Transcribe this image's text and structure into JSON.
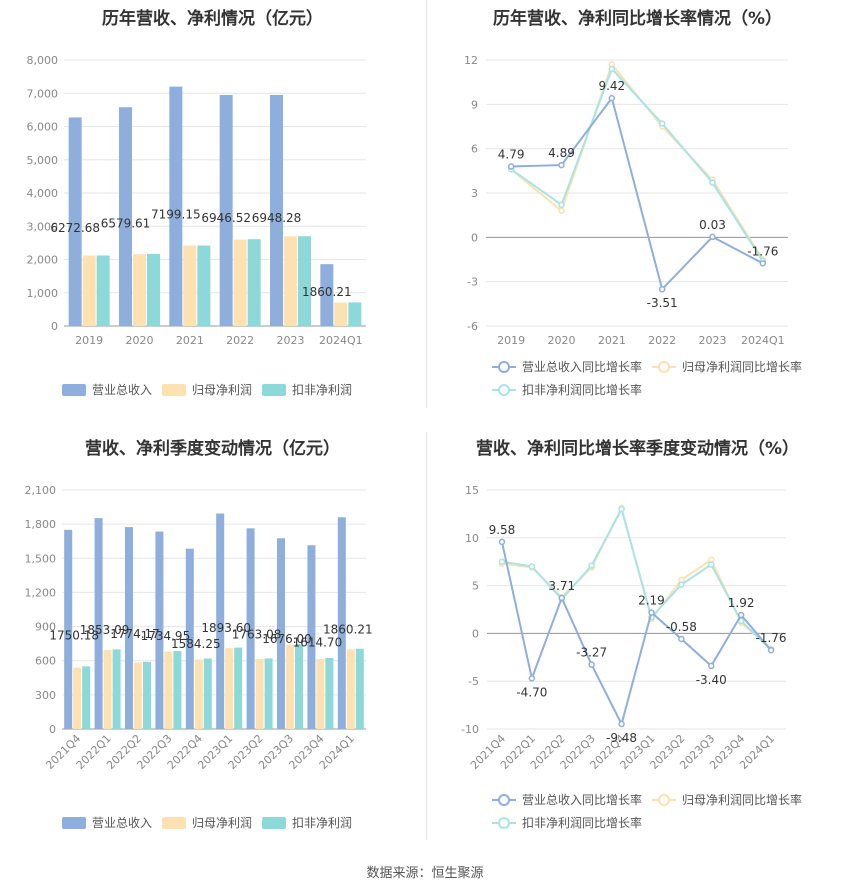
{
  "footer": {
    "source": "数据来源：恒生聚源"
  },
  "colors": {
    "revenue": "#8eafdc",
    "net_profit": "#fde1b0",
    "deducted_profit": "#8dd9d9",
    "rev_line": "#8eafdc",
    "np_line": "#fde1b0",
    "dp_line": "#a8e3e6"
  },
  "chart_data": [
    {
      "id": "annual-bars",
      "type": "bar",
      "title": "历年营收、净利情况（亿元）",
      "categories": [
        "2019",
        "2020",
        "2021",
        "2022",
        "2023",
        "2024Q1"
      ],
      "series": [
        {
          "name": "营业总收入",
          "values": [
            6272.68,
            6579.61,
            7199.15,
            6946.52,
            6948.28,
            1860.21
          ],
          "labels": [
            "6272.68",
            "6579.61",
            "7199.15",
            "6946.52",
            "6948.28",
            "1860.21"
          ]
        },
        {
          "name": "归母净利润",
          "values": [
            2120,
            2160,
            2420,
            2600,
            2700,
            700
          ]
        },
        {
          "name": "扣非净利润",
          "values": [
            2120,
            2170,
            2420,
            2610,
            2700,
            710
          ]
        }
      ],
      "yticks": [
        "0",
        "1,000",
        "2,000",
        "3,000",
        "4,000",
        "5,000",
        "6,000",
        "7,000",
        "8,000"
      ],
      "ylim": [
        0,
        8000
      ],
      "legend_position": "bottom"
    },
    {
      "id": "annual-growth",
      "type": "line",
      "title": "历年营收、净利同比增长率情况（%）",
      "categories": [
        "2019",
        "2020",
        "2021",
        "2022",
        "2023",
        "2024Q1"
      ],
      "series": [
        {
          "name": "营业总收入同比增长率",
          "values": [
            4.79,
            4.89,
            9.42,
            -3.51,
            0.03,
            -1.76
          ],
          "labels": [
            "4.79",
            "4.89",
            "9.42",
            "-3.51",
            "0.03",
            "-1.76"
          ]
        },
        {
          "name": "归母净利润同比增长率",
          "values": [
            4.6,
            1.8,
            11.7,
            7.5,
            3.9,
            -1.5
          ]
        },
        {
          "name": "扣非净利润同比增长率",
          "values": [
            4.6,
            2.2,
            11.4,
            7.7,
            3.7,
            -1.6
          ]
        }
      ],
      "yticks": [
        "-6",
        "-3",
        "0",
        "3",
        "6",
        "9",
        "12"
      ],
      "ylim": [
        -6,
        12
      ],
      "legend_position": "bottom"
    },
    {
      "id": "quarterly-bars",
      "type": "bar",
      "title": "营收、净利季度变动情况（亿元）",
      "categories": [
        "2021Q4",
        "2022Q1",
        "2022Q2",
        "2022Q3",
        "2022Q4",
        "2023Q1",
        "2023Q2",
        "2023Q3",
        "2023Q4",
        "2024Q1"
      ],
      "series": [
        {
          "name": "营业总收入",
          "values": [
            1750.18,
            1853.09,
            1774.17,
            1734.95,
            1584.25,
            1893.6,
            1763.08,
            1676.0,
            1614.7,
            1860.21
          ],
          "labels": [
            "1750.18",
            "1853.09",
            "1774.17",
            "1734.95",
            "1584.25",
            "1893.60",
            "1763.08",
            "1676.00",
            "1614.70",
            "1860.21"
          ]
        },
        {
          "name": "归母净利润",
          "values": [
            540,
            695,
            585,
            680,
            610,
            710,
            615,
            740,
            615,
            700
          ]
        },
        {
          "name": "扣非净利润",
          "values": [
            550,
            700,
            590,
            685,
            620,
            715,
            620,
            745,
            625,
            705
          ]
        }
      ],
      "yticks": [
        "0",
        "300",
        "600",
        "900",
        "1,200",
        "1,500",
        "1,800",
        "2,100"
      ],
      "ylim": [
        0,
        2100
      ],
      "legend_position": "bottom"
    },
    {
      "id": "quarterly-growth",
      "type": "line",
      "title": "营收、净利同比增长率季度变动情况（%）",
      "categories": [
        "2021Q4",
        "2022Q1",
        "2022Q2",
        "2022Q3",
        "2022Q4",
        "2023Q1",
        "2023Q2",
        "2023Q3",
        "2023Q4",
        "2024Q1"
      ],
      "series": [
        {
          "name": "营业总收入同比增长率",
          "values": [
            9.58,
            -4.7,
            3.71,
            -3.27,
            -9.48,
            2.19,
            -0.58,
            -3.4,
            1.92,
            -1.76
          ],
          "labels": [
            "9.58",
            "-4.70",
            "3.71",
            "-3.27",
            "-9.48",
            "2.19",
            "-0.58",
            "-3.40",
            "1.92",
            "-1.76"
          ]
        },
        {
          "name": "归母净利润同比增长率",
          "values": [
            7.3,
            6.9,
            3.8,
            6.9,
            13.1,
            1.5,
            5.6,
            7.7,
            1.1,
            -1.6
          ]
        },
        {
          "name": "扣非净利润同比增长率",
          "values": [
            7.5,
            7.0,
            3.6,
            7.1,
            13.0,
            1.7,
            5.1,
            7.2,
            1.3,
            -1.7
          ]
        }
      ],
      "yticks": [
        "-10",
        "-5",
        "0",
        "5",
        "10",
        "15"
      ],
      "ylim": [
        -10,
        15
      ],
      "legend_position": "bottom"
    }
  ]
}
